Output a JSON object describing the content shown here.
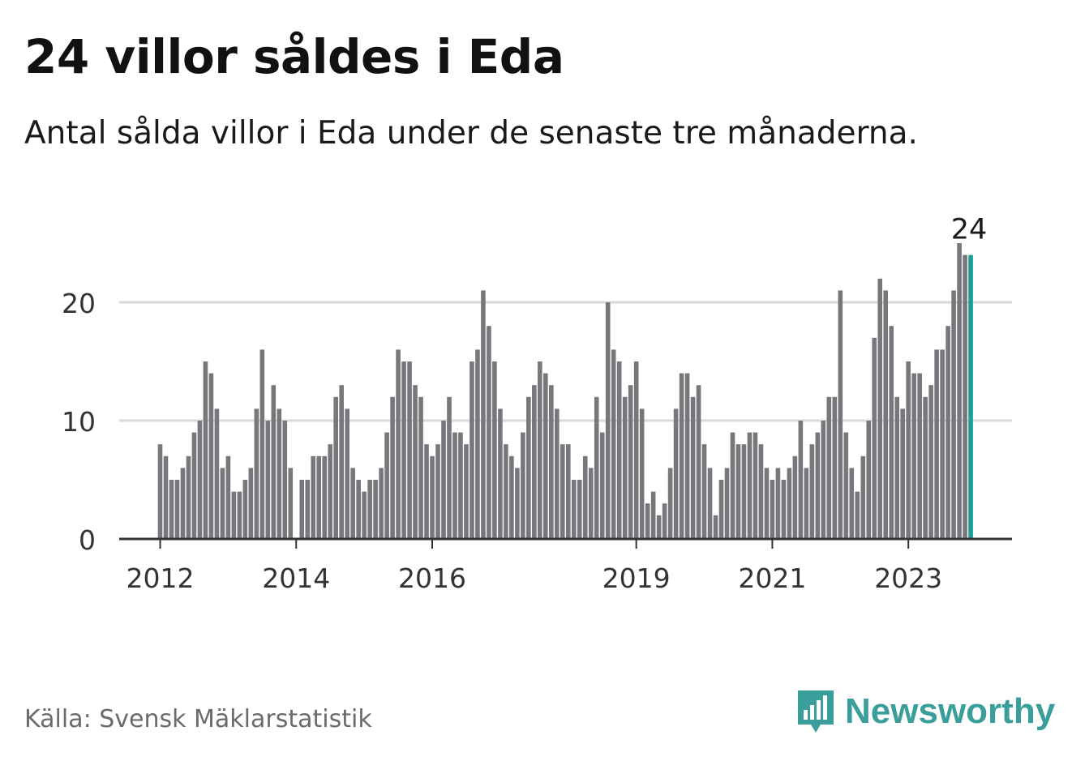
{
  "title": "24 villor såldes i Eda",
  "subtitle": "Antal sålda villor i Eda under de senaste tre månaderna.",
  "source": "Källa: Svensk Mäklarstatistik",
  "brand": {
    "name": "Newsworthy",
    "icon": "newsworthy-logo-icon",
    "color": "#3a9e9a"
  },
  "colors": {
    "bar": "#78777c",
    "highlight": "#1a9e96",
    "grid": "#d9d9d9",
    "axis": "#333333"
  },
  "chart_data": {
    "type": "bar",
    "ylim": [
      0,
      27
    ],
    "yticks": [
      0,
      10,
      20
    ],
    "xtick_labels": [
      {
        "label": "2012",
        "index": 0
      },
      {
        "label": "2014",
        "index": 24
      },
      {
        "label": "2016",
        "index": 48
      },
      {
        "label": "2019",
        "index": 84
      },
      {
        "label": "2021",
        "index": 108
      },
      {
        "label": "2023",
        "index": 132
      }
    ],
    "highlight_label": "24",
    "values": [
      8,
      7,
      5,
      5,
      6,
      7,
      9,
      10,
      15,
      14,
      11,
      6,
      7,
      4,
      4,
      5,
      6,
      11,
      16,
      10,
      13,
      11,
      10,
      6,
      0,
      5,
      5,
      7,
      7,
      7,
      8,
      12,
      13,
      11,
      6,
      5,
      4,
      5,
      5,
      6,
      9,
      12,
      16,
      15,
      15,
      13,
      12,
      8,
      7,
      8,
      10,
      12,
      9,
      9,
      8,
      15,
      16,
      21,
      18,
      15,
      11,
      8,
      7,
      6,
      9,
      12,
      13,
      15,
      14,
      13,
      11,
      8,
      8,
      5,
      5,
      7,
      6,
      12,
      9,
      20,
      16,
      15,
      12,
      13,
      15,
      11,
      3,
      4,
      2,
      3,
      6,
      11,
      14,
      14,
      12,
      13,
      8,
      6,
      2,
      5,
      6,
      9,
      8,
      8,
      9,
      9,
      8,
      6,
      5,
      6,
      5,
      6,
      7,
      10,
      6,
      8,
      9,
      10,
      12,
      12,
      21,
      9,
      6,
      4,
      7,
      10,
      17,
      22,
      21,
      18,
      12,
      11,
      15,
      14,
      14,
      12,
      13,
      16,
      16,
      18,
      21,
      25,
      24,
      24
    ]
  }
}
